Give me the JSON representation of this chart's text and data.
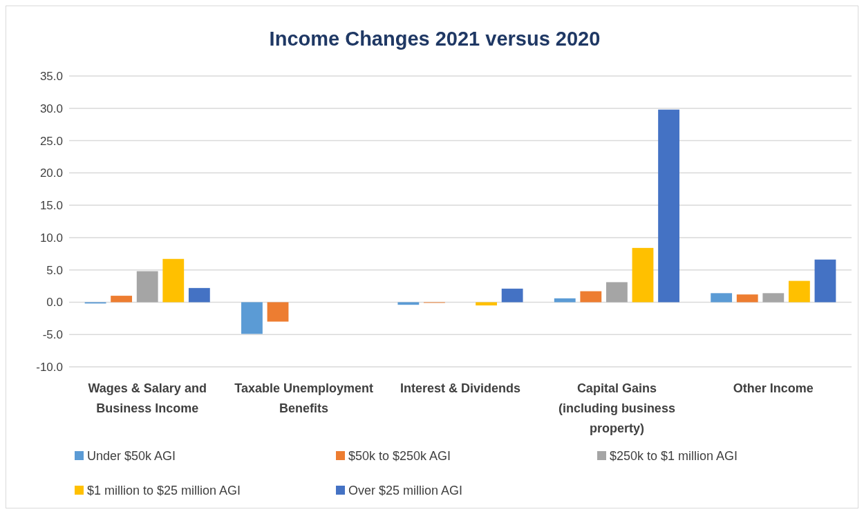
{
  "chart_data": {
    "type": "bar",
    "title": "Income Changes 2021 versus 2020",
    "categories": [
      "Wages & Salary and Business Income",
      "Taxable Unemployment Benefits",
      "Interest & Dividends",
      "Capital Gains (including business property)",
      "Other Income"
    ],
    "series": [
      {
        "name": "Under $50k AGI",
        "color": "#5b9bd5",
        "values": [
          -0.2,
          -4.9,
          -0.4,
          0.6,
          1.4
        ]
      },
      {
        "name": "$50k to $250k AGI",
        "color": "#ed7d31",
        "values": [
          1.0,
          -3.0,
          -0.1,
          1.7,
          1.2
        ]
      },
      {
        "name": "$250k to $1 million AGI",
        "color": "#a5a5a5",
        "values": [
          4.8,
          null,
          null,
          3.1,
          1.4
        ]
      },
      {
        "name": "$1 million to $25 million AGI",
        "color": "#ffc000",
        "values": [
          6.7,
          null,
          -0.5,
          8.4,
          3.3
        ]
      },
      {
        "name": "Over $25 million AGI",
        "color": "#4472c4",
        "values": [
          2.2,
          null,
          2.1,
          29.8,
          6.6
        ]
      }
    ],
    "ylim": [
      -10,
      35
    ],
    "yticks": [
      {
        "value": -10,
        "label": "-10.0"
      },
      {
        "value": -5,
        "label": "-5.0"
      },
      {
        "value": 0,
        "label": "0.0"
      },
      {
        "value": 5,
        "label": "5.0"
      },
      {
        "value": 10,
        "label": "10.0"
      },
      {
        "value": 15,
        "label": "15.0"
      },
      {
        "value": 20,
        "label": "20.0"
      },
      {
        "value": 25,
        "label": "25.0"
      },
      {
        "value": 30,
        "label": "30.0"
      },
      {
        "value": 35,
        "label": "35.0"
      }
    ],
    "grid": "y",
    "legend": "bottom"
  }
}
